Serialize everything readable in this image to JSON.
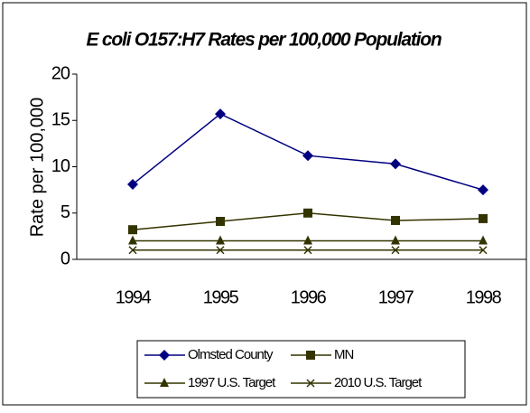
{
  "chart_data": {
    "type": "line",
    "title": "E coli O157:H7 Rates per 100,000 Population",
    "y_label": "Rate per 100,000",
    "categories": [
      "1994",
      "1995",
      "1996",
      "1997",
      "1998"
    ],
    "series": [
      {
        "name": "Olmsted County",
        "color": "#000080",
        "marker": "diamond",
        "values": [
          8.1,
          15.7,
          11.2,
          10.3,
          7.5
        ]
      },
      {
        "name": "MN",
        "color": "#333300",
        "marker": "square",
        "values": [
          3.2,
          4.1,
          5.0,
          4.2,
          4.4
        ]
      },
      {
        "name": "1997 U.S. Target",
        "color": "#333300",
        "marker": "triangle",
        "values": [
          2,
          2,
          2,
          2,
          2
        ]
      },
      {
        "name": "2010 U.S. Target",
        "color": "#333300",
        "marker": "x",
        "values": [
          1,
          1,
          1,
          1,
          1
        ]
      }
    ],
    "ylim": [
      0,
      20
    ],
    "yticks": [
      0,
      5,
      10,
      15,
      20
    ],
    "grid": false,
    "legend": "bottom"
  }
}
